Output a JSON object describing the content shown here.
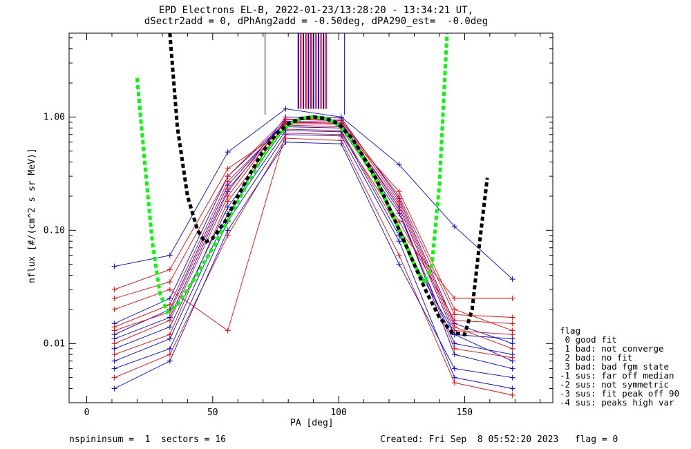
{
  "header": {
    "title_line1": "EPD Electrons EL-B, 2022-01-23/13:28:20 - 13:34:21 UT,",
    "title_line2": "dSectr2add = 0, dPhAng2add = -0.50deg, dPA290_est=  -0.0deg"
  },
  "footer": {
    "left": "nspininsum =  1  sectors = 16",
    "right": "Created: Fri Sep  8 05:52:20 2023   flag = 0"
  },
  "legend": {
    "title": "flag",
    "items": [
      " 0 good fit",
      " 1 bad: not converge",
      " 2 bad: no fit",
      " 3 bad: bad fgm state",
      "-1 sus: far off median",
      "-2 sus: not symmetric",
      "-3 sus: fit peak off 90",
      "-4 sus: peaks high var"
    ]
  },
  "colors": {
    "series_a": "#0000ff",
    "series_b": "#ff0000",
    "fit_green": "#00ff00",
    "fit_black": "#000000"
  },
  "chart_data": {
    "type": "line",
    "title": "EPD Electrons EL-B, 2022-01-23/13:28:20 - 13:34:21 UT,",
    "subtitle": "dSectr2add = 0, dPhAng2add = -0.50deg, dPA290_est=  -0.0deg",
    "xlabel": "PA [deg]",
    "ylabel": "nflux [#/(cm^2 s sr MeV)]",
    "xlim": [
      -7,
      185
    ],
    "ylim": [
      0.003,
      5.5
    ],
    "yscale": "log",
    "x_ticks": [
      0,
      50,
      100,
      150
    ],
    "x_tick_labels": [
      "0",
      "50",
      "100",
      "150"
    ],
    "y_ticks": [
      0.01,
      0.1,
      1.0
    ],
    "y_tick_labels": [
      "0.01",
      "0.10",
      "1.00"
    ],
    "pa_bins": [
      11,
      33,
      56,
      79,
      101,
      124,
      146,
      169
    ],
    "series": [
      {
        "color": "#0000ff",
        "values": [
          0.011,
          0.017,
          0.22,
          1.0,
          0.98,
          0.19,
          0.015,
          0.01
        ]
      },
      {
        "color": "#ff0000",
        "values": [
          0.01,
          0.016,
          0.2,
          0.95,
          0.93,
          0.18,
          0.014,
          0.009
        ]
      },
      {
        "color": "#0000ff",
        "values": [
          0.015,
          0.025,
          0.3,
          0.9,
          0.88,
          0.15,
          0.008,
          0.006
        ]
      },
      {
        "color": "#ff0000",
        "values": [
          0.008,
          0.012,
          0.18,
          0.85,
          0.82,
          0.22,
          0.02,
          0.013
        ]
      },
      {
        "color": "#0000ff",
        "values": [
          0.048,
          0.06,
          0.49,
          1.18,
          1.0,
          0.38,
          0.108,
          0.037
        ]
      },
      {
        "color": "#ff0000",
        "values": [
          0.03,
          0.045,
          0.35,
          0.78,
          0.76,
          0.1,
          0.025,
          0.025
        ]
      },
      {
        "color": "#0000ff",
        "values": [
          0.006,
          0.009,
          0.12,
          0.7,
          0.68,
          0.08,
          0.005,
          0.004
        ]
      },
      {
        "color": "#ff0000",
        "values": [
          0.005,
          0.008,
          0.09,
          0.65,
          0.62,
          0.06,
          0.0045,
          0.0035
        ]
      },
      {
        "color": "#0000ff",
        "values": [
          0.012,
          0.02,
          0.25,
          0.92,
          0.9,
          0.16,
          0.012,
          0.011
        ]
      },
      {
        "color": "#ff0000",
        "values": [
          0.014,
          0.022,
          0.27,
          0.88,
          0.86,
          0.17,
          0.013,
          0.012
        ]
      },
      {
        "color": "#0000ff",
        "values": [
          0.009,
          0.014,
          0.16,
          0.82,
          0.8,
          0.14,
          0.01,
          0.008
        ]
      },
      {
        "color": "#ff0000",
        "values": [
          0.02,
          0.03,
          0.013,
          0.72,
          0.7,
          0.12,
          0.016,
          0.015
        ]
      },
      {
        "color": "#0000ff",
        "values": [
          0.007,
          0.011,
          0.14,
          0.76,
          0.74,
          0.09,
          0.012,
          0.007
        ]
      },
      {
        "color": "#ff0000",
        "values": [
          0.025,
          0.035,
          0.3,
          0.96,
          0.94,
          0.2,
          0.018,
          0.017
        ]
      },
      {
        "color": "#0000ff",
        "values": [
          0.004,
          0.007,
          0.1,
          0.6,
          0.58,
          0.05,
          0.006,
          0.005
        ]
      },
      {
        "color": "#ff0000",
        "values": [
          0.013,
          0.019,
          0.23,
          0.9,
          0.88,
          0.15,
          0.009,
          0.0075
        ]
      }
    ],
    "clipped_spikes_pa": [
      84,
      85,
      86,
      87,
      88,
      89,
      90,
      91,
      92,
      93,
      94,
      95
    ],
    "fit_curves": [
      {
        "color": "#00ff00",
        "style": "dashed",
        "x": [
          20,
          23,
          26,
          29,
          32,
          36,
          40,
          45,
          50,
          55,
          60,
          65,
          70,
          75,
          80,
          85,
          90,
          95,
          100,
          105,
          110,
          115,
          120,
          125,
          130,
          134,
          137,
          140,
          143
        ],
        "y": [
          2.2,
          0.4,
          0.08,
          0.028,
          0.019,
          0.022,
          0.03,
          0.045,
          0.07,
          0.11,
          0.18,
          0.29,
          0.45,
          0.65,
          0.85,
          0.97,
          1.0,
          0.97,
          0.85,
          0.62,
          0.42,
          0.27,
          0.16,
          0.09,
          0.05,
          0.034,
          0.05,
          0.25,
          5.5
        ]
      },
      {
        "color": "#000000",
        "style": "dashed",
        "x": [
          33,
          36,
          40,
          44,
          47,
          50,
          55,
          60,
          65,
          70,
          75,
          80,
          85,
          90,
          95,
          100,
          105,
          110,
          115,
          120,
          125,
          130,
          135,
          140,
          145,
          150,
          153,
          156,
          159
        ],
        "y": [
          5.5,
          0.8,
          0.2,
          0.1,
          0.078,
          0.085,
          0.12,
          0.2,
          0.32,
          0.5,
          0.7,
          0.87,
          0.97,
          1.0,
          0.97,
          0.87,
          0.66,
          0.44,
          0.28,
          0.16,
          0.09,
          0.05,
          0.028,
          0.017,
          0.0125,
          0.012,
          0.02,
          0.08,
          0.29
        ]
      }
    ]
  }
}
